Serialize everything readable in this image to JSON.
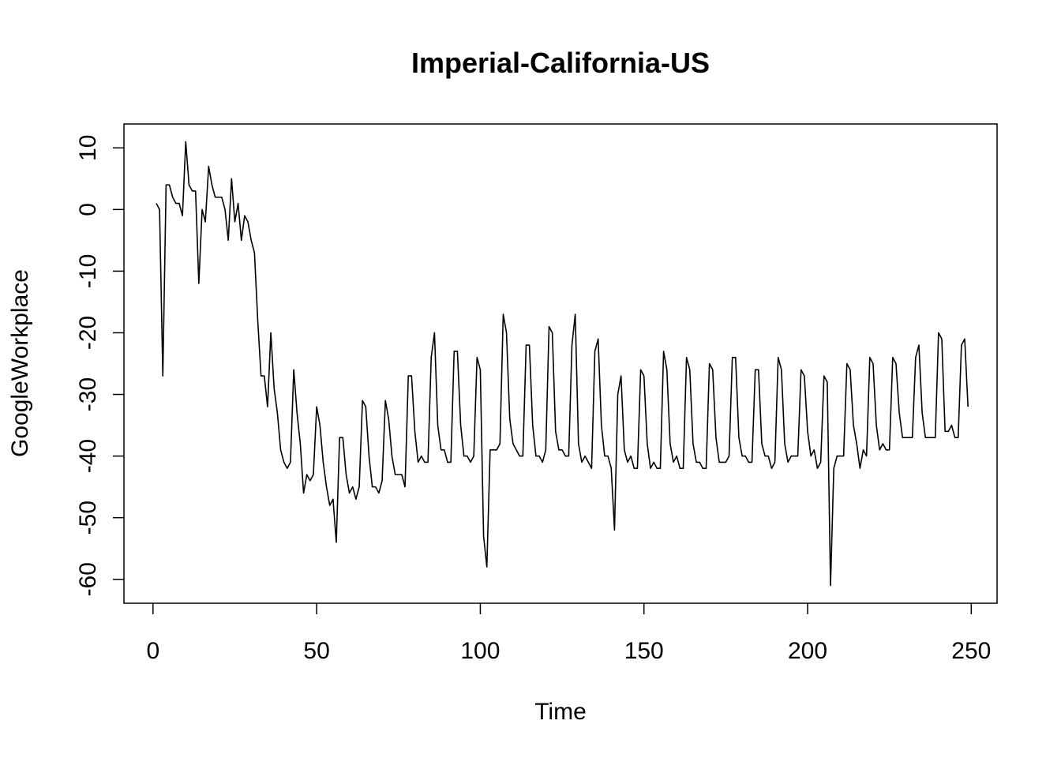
{
  "chart_data": {
    "type": "line",
    "title": "Imperial-California-US",
    "xlabel": "Time",
    "ylabel": "GoogleWorkplace",
    "xlim": [
      1,
      248
    ],
    "ylim": [
      -61,
      11
    ],
    "x_ticks": [
      0,
      50,
      100,
      150,
      200,
      250
    ],
    "y_ticks": [
      -60,
      -50,
      -40,
      -30,
      -20,
      -10,
      0,
      10
    ],
    "grid": false,
    "legend": "none",
    "series": [
      {
        "values": [
          1,
          0,
          -27,
          4,
          4,
          2,
          1,
          1,
          -1,
          11,
          4,
          3,
          3,
          -12,
          0,
          -2,
          7,
          4,
          2,
          2,
          2,
          0,
          -5,
          5,
          -2,
          1,
          -5,
          -1,
          -2,
          -5,
          -7,
          -18,
          -27,
          -27,
          -32,
          -20,
          -29,
          -33,
          -39,
          -41,
          -42,
          -41,
          -26,
          -33,
          -38,
          -46,
          -43,
          -44,
          -43,
          -32,
          -35,
          -41,
          -45,
          -48,
          -47,
          -54,
          -37,
          -37,
          -43,
          -46,
          -45,
          -47,
          -45,
          -31,
          -32,
          -40,
          -45,
          -45,
          -46,
          -44,
          -31,
          -34,
          -40,
          -43,
          -43,
          -43,
          -45,
          -27,
          -27,
          -36,
          -41,
          -40,
          -41,
          -41,
          -24,
          -20,
          -35,
          -39,
          -39,
          -41,
          -41,
          -23,
          -23,
          -35,
          -40,
          -40,
          -41,
          -40,
          -24,
          -26,
          -53,
          -58,
          -39,
          -39,
          -39,
          -38,
          -17,
          -20,
          -34,
          -38,
          -39,
          -40,
          -40,
          -22,
          -22,
          -35,
          -40,
          -40,
          -41,
          -39,
          -19,
          -20,
          -36,
          -39,
          -39,
          -40,
          -40,
          -22,
          -17,
          -38,
          -41,
          -40,
          -41,
          -42,
          -23,
          -21,
          -35,
          -40,
          -40,
          -42,
          -52,
          -30,
          -27,
          -39,
          -41,
          -40,
          -42,
          -42,
          -26,
          -27,
          -38,
          -42,
          -41,
          -42,
          -42,
          -23,
          -26,
          -38,
          -41,
          -40,
          -42,
          -42,
          -24,
          -26,
          -38,
          -41,
          -41,
          -42,
          -42,
          -25,
          -26,
          -37,
          -41,
          -41,
          -41,
          -40,
          -24,
          -24,
          -37,
          -40,
          -40,
          -41,
          -41,
          -26,
          -26,
          -38,
          -40,
          -40,
          -42,
          -41,
          -24,
          -26,
          -38,
          -41,
          -40,
          -40,
          -40,
          -26,
          -27,
          -36,
          -40,
          -39,
          -42,
          -41,
          -27,
          -28,
          -61,
          -42,
          -40,
          -40,
          -40,
          -25,
          -26,
          -35,
          -38,
          -42,
          -39,
          -40,
          -24,
          -25,
          -35,
          -39,
          -38,
          -39,
          -39,
          -24,
          -25,
          -33,
          -37,
          -37,
          -37,
          -37,
          -24,
          -22,
          -33,
          -37,
          -37,
          -37,
          -37,
          -20,
          -21,
          -36,
          -36,
          -35,
          -37,
          -37,
          -22,
          -21,
          -32
        ]
      }
    ]
  }
}
